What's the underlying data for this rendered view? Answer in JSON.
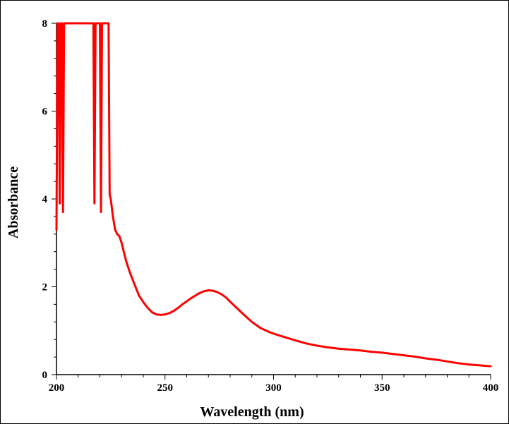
{
  "chart_data": {
    "type": "line",
    "title": "",
    "xlabel": "Wavelength (nm)",
    "ylabel": "Absorbance",
    "xlim": [
      200,
      400
    ],
    "ylim": [
      0,
      8
    ],
    "xticks": [
      200,
      250,
      300,
      350,
      400
    ],
    "yticks": [
      0,
      2,
      4,
      6,
      8
    ],
    "grid": false,
    "legend": "none",
    "series": [
      {
        "color": "#ff0000",
        "x": [
          200,
          200.5,
          201,
          201.5,
          202,
          202.5,
          203,
          203.5,
          204,
          217,
          217.5,
          218,
          218.5,
          219,
          220,
          220.5,
          221,
          221.5,
          222,
          223,
          223.5,
          224,
          224.5,
          225,
          226,
          227,
          228,
          229,
          230,
          231,
          232,
          233,
          234,
          236,
          238,
          240,
          242,
          244,
          246,
          248,
          250,
          252,
          254,
          256,
          258,
          260,
          262,
          264,
          266,
          268,
          270,
          272,
          274,
          276,
          278,
          280,
          283,
          286,
          290,
          294,
          298,
          302,
          306,
          310,
          315,
          320,
          325,
          330,
          335,
          340,
          345,
          350,
          355,
          360,
          365,
          370,
          375,
          380,
          385,
          390,
          395,
          400
        ],
        "y": [
          3.3,
          8,
          8,
          3.9,
          8,
          8,
          3.7,
          8,
          8,
          8,
          3.9,
          8,
          8,
          8,
          8,
          3.7,
          8,
          8,
          8,
          8,
          8,
          8,
          4.1,
          4.0,
          3.6,
          3.3,
          3.2,
          3.15,
          3.0,
          2.8,
          2.6,
          2.45,
          2.3,
          2.05,
          1.8,
          1.65,
          1.52,
          1.42,
          1.37,
          1.36,
          1.37,
          1.4,
          1.45,
          1.52,
          1.6,
          1.67,
          1.74,
          1.8,
          1.86,
          1.9,
          1.92,
          1.91,
          1.88,
          1.83,
          1.76,
          1.66,
          1.52,
          1.38,
          1.2,
          1.06,
          0.97,
          0.9,
          0.84,
          0.78,
          0.71,
          0.66,
          0.62,
          0.59,
          0.57,
          0.55,
          0.52,
          0.5,
          0.47,
          0.44,
          0.41,
          0.37,
          0.34,
          0.3,
          0.26,
          0.23,
          0.21,
          0.19
        ]
      }
    ]
  }
}
